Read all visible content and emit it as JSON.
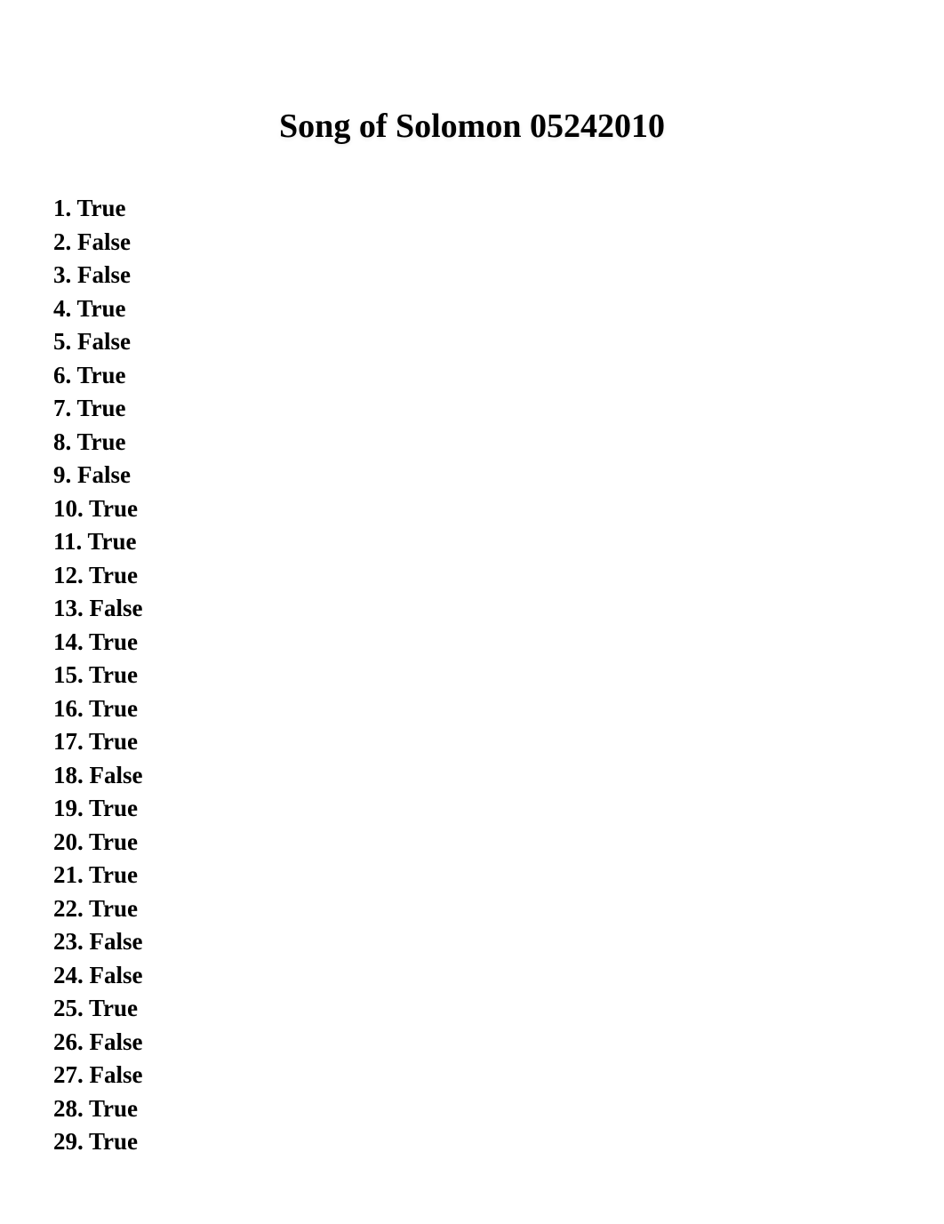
{
  "title": "Song of Solomon 05242010",
  "answers": [
    {
      "num": "1",
      "value": "True"
    },
    {
      "num": "2",
      "value": "False"
    },
    {
      "num": "3",
      "value": "False"
    },
    {
      "num": "4",
      "value": "True"
    },
    {
      "num": "5",
      "value": "False"
    },
    {
      "num": "6",
      "value": "True"
    },
    {
      "num": "7",
      "value": "True"
    },
    {
      "num": "8",
      "value": "True"
    },
    {
      "num": "9",
      "value": "False"
    },
    {
      "num": "10",
      "value": "True"
    },
    {
      "num": "11",
      "value": "True"
    },
    {
      "num": "12",
      "value": "True"
    },
    {
      "num": "13",
      "value": "False"
    },
    {
      "num": "14",
      "value": "True"
    },
    {
      "num": "15",
      "value": "True"
    },
    {
      "num": "16",
      "value": "True"
    },
    {
      "num": "17",
      "value": "True"
    },
    {
      "num": "18",
      "value": "False"
    },
    {
      "num": "19",
      "value": "True"
    },
    {
      "num": "20",
      "value": "True"
    },
    {
      "num": "21",
      "value": "True"
    },
    {
      "num": "22",
      "value": "True"
    },
    {
      "num": "23",
      "value": "False"
    },
    {
      "num": "24",
      "value": "False"
    },
    {
      "num": "25",
      "value": "True"
    },
    {
      "num": "26",
      "value": "False"
    },
    {
      "num": "27",
      "value": "False"
    },
    {
      "num": "28",
      "value": "True"
    },
    {
      "num": "29",
      "value": "True"
    }
  ]
}
